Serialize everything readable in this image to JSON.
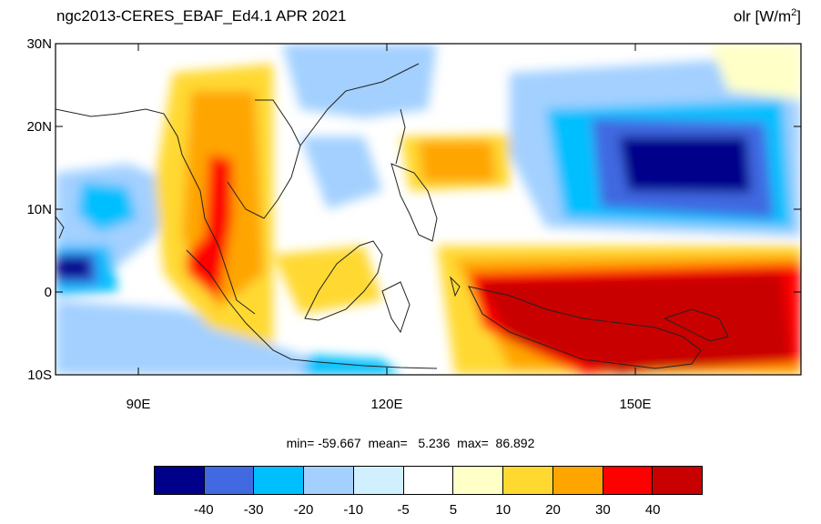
{
  "header": {
    "title": "ngc2013-CERES_EBAF_Ed4.1  APR 2021",
    "variable": "olr [W/m",
    "variable_sup": "2",
    "variable_end": "]"
  },
  "map": {
    "lon_range": [
      80,
      170
    ],
    "lat_range": [
      -10,
      30
    ],
    "lat_ticks": [
      {
        "value": 30,
        "label": "30N"
      },
      {
        "value": 20,
        "label": "20N"
      },
      {
        "value": 10,
        "label": "10N"
      },
      {
        "value": 0,
        "label": "0"
      },
      {
        "value": -10,
        "label": "10S"
      }
    ],
    "lon_ticks": [
      {
        "value": 90,
        "label": "90E"
      },
      {
        "value": 120,
        "label": "120E"
      },
      {
        "value": 150,
        "label": "150E"
      }
    ]
  },
  "stats": "min= -59.667  mean=   5.236  max=  86.892",
  "colorbar": {
    "colors": [
      "#00008b",
      "#4169e1",
      "#00bfff",
      "#a3d0ff",
      "#d0f0ff",
      "#ffffff",
      "#ffffc8",
      "#ffd930",
      "#ffa500",
      "#ff0000",
      "#c80000"
    ],
    "labels": [
      "-40",
      "-30",
      "-20",
      "-10",
      "-5",
      "5",
      "10",
      "20",
      "30",
      "40"
    ]
  }
}
